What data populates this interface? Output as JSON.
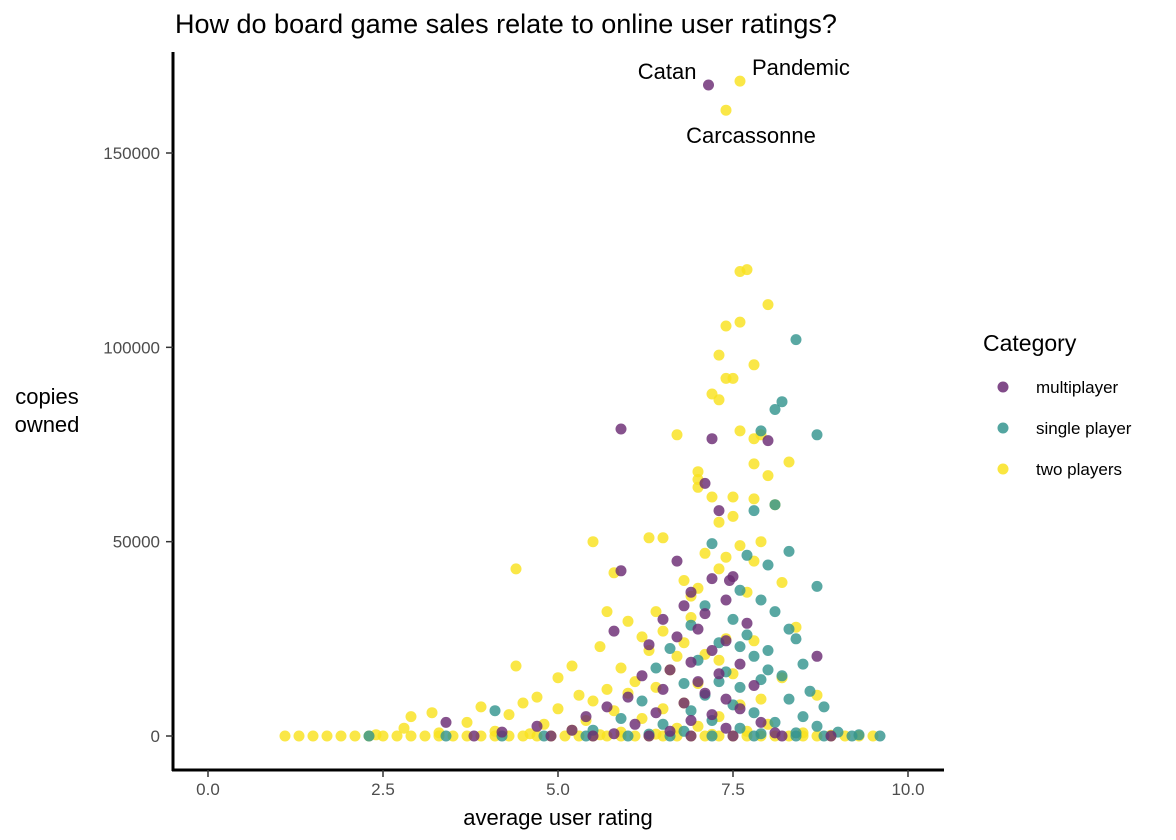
{
  "chart_data": {
    "type": "scatter",
    "title": "How do board game sales relate to online user ratings?",
    "xlabel": "average user rating",
    "ylabel_lines": [
      "copies",
      "owned"
    ],
    "xlim": [
      -0.5,
      10.5
    ],
    "ylim": [
      -8000,
      176000
    ],
    "x_ticks": [
      0,
      2.5,
      5,
      7.5,
      10
    ],
    "x_tick_labels": [
      "0.0",
      "2.5",
      "5.0",
      "7.5",
      "10.0"
    ],
    "y_ticks": [
      0,
      50000,
      100000,
      150000
    ],
    "y_tick_labels": [
      "0",
      "50000",
      "100000",
      "150000"
    ],
    "grid": false,
    "legend": {
      "title": "Category",
      "position": "right",
      "entries": [
        {
          "name": "multiplayer",
          "color": "#6b2c74"
        },
        {
          "name": "single player",
          "color": "#35958f"
        },
        {
          "name": "two players",
          "color": "#f9e21f"
        }
      ]
    },
    "annotations": [
      {
        "text": "Catan",
        "x": 7.15,
        "y": 167500
      },
      {
        "text": "Pandemic",
        "x": 7.6,
        "y": 168500
      },
      {
        "text": "Carcassonne",
        "x": 7.4,
        "y": 161000
      }
    ],
    "series": [
      {
        "name": "two players",
        "color": "#f9e21f",
        "points": [
          [
            7.6,
            168500
          ],
          [
            7.4,
            161000
          ],
          [
            7.6,
            119500
          ],
          [
            7.7,
            120000
          ],
          [
            8.0,
            111000
          ],
          [
            7.4,
            105500
          ],
          [
            7.6,
            106500
          ],
          [
            7.3,
            98000
          ],
          [
            7.8,
            95500
          ],
          [
            7.4,
            92000
          ],
          [
            7.5,
            92000
          ],
          [
            7.2,
            88000
          ],
          [
            7.3,
            86500
          ],
          [
            7.6,
            78500
          ],
          [
            6.7,
            77500
          ],
          [
            7.8,
            76500
          ],
          [
            7.9,
            77500
          ],
          [
            7.8,
            70000
          ],
          [
            8.3,
            70500
          ],
          [
            8.0,
            67000
          ],
          [
            7.0,
            68000
          ],
          [
            7.0,
            66000
          ],
          [
            7.0,
            64000
          ],
          [
            7.8,
            61000
          ],
          [
            8.1,
            59500
          ],
          [
            7.2,
            61500
          ],
          [
            7.5,
            61500
          ],
          [
            7.3,
            55000
          ],
          [
            7.5,
            56500
          ],
          [
            6.3,
            51000
          ],
          [
            6.5,
            51000
          ],
          [
            5.5,
            50000
          ],
          [
            7.1,
            47000
          ],
          [
            7.4,
            46000
          ],
          [
            7.8,
            45000
          ],
          [
            7.9,
            50000
          ],
          [
            7.6,
            49000
          ],
          [
            4.4,
            43000
          ],
          [
            5.8,
            42000
          ],
          [
            7.3,
            43000
          ],
          [
            6.8,
            40000
          ],
          [
            8.2,
            39500
          ],
          [
            6.9,
            36000
          ],
          [
            7.0,
            38000
          ],
          [
            7.7,
            37000
          ],
          [
            6.4,
            32000
          ],
          [
            5.7,
            32000
          ],
          [
            6.0,
            29500
          ],
          [
            6.9,
            30500
          ],
          [
            8.4,
            28000
          ],
          [
            6.5,
            27000
          ],
          [
            6.2,
            25500
          ],
          [
            7.4,
            25000
          ],
          [
            7.8,
            24500
          ],
          [
            6.8,
            24000
          ],
          [
            5.6,
            23000
          ],
          [
            6.3,
            22000
          ],
          [
            7.1,
            21000
          ],
          [
            6.7,
            20500
          ],
          [
            7.3,
            19500
          ],
          [
            4.4,
            18000
          ],
          [
            5.2,
            18000
          ],
          [
            5.9,
            17500
          ],
          [
            6.6,
            17000
          ],
          [
            7.5,
            16000
          ],
          [
            8.2,
            15000
          ],
          [
            5.0,
            15000
          ],
          [
            6.1,
            14000
          ],
          [
            7.0,
            13500
          ],
          [
            5.7,
            12000
          ],
          [
            6.4,
            12500
          ],
          [
            4.7,
            10000
          ],
          [
            5.3,
            10500
          ],
          [
            6.0,
            11000
          ],
          [
            8.7,
            10500
          ],
          [
            7.9,
            9500
          ],
          [
            4.5,
            8500
          ],
          [
            5.5,
            9000
          ],
          [
            6.8,
            8500
          ],
          [
            7.6,
            8000
          ],
          [
            3.9,
            7500
          ],
          [
            5.0,
            7000
          ],
          [
            5.8,
            6500
          ],
          [
            6.5,
            7000
          ],
          [
            3.2,
            6000
          ],
          [
            4.3,
            5500
          ],
          [
            2.9,
            5000
          ],
          [
            7.3,
            5000
          ],
          [
            6.2,
            4500
          ],
          [
            5.4,
            4000
          ],
          [
            3.7,
            3500
          ],
          [
            4.8,
            3000
          ],
          [
            8.0,
            3000
          ],
          [
            7.0,
            2500
          ],
          [
            2.8,
            2000
          ],
          [
            6.7,
            2000
          ],
          [
            5.2,
            1500
          ],
          [
            4.1,
            1200
          ],
          [
            7.7,
            1200
          ],
          [
            5.9,
            1000
          ],
          [
            3.3,
            800
          ],
          [
            8.5,
            800
          ],
          [
            4.6,
            600
          ],
          [
            6.4,
            500
          ],
          [
            7.2,
            400
          ],
          [
            2.4,
            300
          ],
          [
            5.6,
            300
          ],
          [
            8.9,
            200
          ],
          [
            1.1,
            0
          ],
          [
            1.3,
            0
          ],
          [
            1.5,
            0
          ],
          [
            1.7,
            0
          ],
          [
            1.9,
            0
          ],
          [
            2.1,
            0
          ],
          [
            2.3,
            0
          ],
          [
            2.5,
            0
          ],
          [
            2.7,
            0
          ],
          [
            2.9,
            0
          ],
          [
            3.1,
            0
          ],
          [
            3.3,
            0
          ],
          [
            3.5,
            0
          ],
          [
            3.7,
            0
          ],
          [
            3.9,
            0
          ],
          [
            4.1,
            0
          ],
          [
            4.3,
            0
          ],
          [
            4.5,
            0
          ],
          [
            4.7,
            0
          ],
          [
            4.9,
            0
          ],
          [
            5.1,
            0
          ],
          [
            5.3,
            0
          ],
          [
            5.5,
            0
          ],
          [
            5.7,
            0
          ],
          [
            5.9,
            0
          ],
          [
            6.1,
            0
          ],
          [
            6.3,
            0
          ],
          [
            6.5,
            0
          ],
          [
            6.7,
            0
          ],
          [
            6.9,
            0
          ],
          [
            7.1,
            0
          ],
          [
            7.3,
            0
          ],
          [
            7.5,
            0
          ],
          [
            7.7,
            0
          ],
          [
            7.9,
            0
          ],
          [
            8.1,
            0
          ],
          [
            8.3,
            0
          ],
          [
            8.5,
            0
          ],
          [
            8.7,
            0
          ],
          [
            8.9,
            0
          ],
          [
            9.1,
            0
          ],
          [
            9.3,
            0
          ],
          [
            9.5,
            0
          ]
        ]
      },
      {
        "name": "single player",
        "color": "#35958f",
        "points": [
          [
            8.4,
            102000
          ],
          [
            8.2,
            86000
          ],
          [
            8.1,
            84000
          ],
          [
            7.9,
            78500
          ],
          [
            8.7,
            77500
          ],
          [
            8.1,
            59500
          ],
          [
            7.8,
            58000
          ],
          [
            8.3,
            47500
          ],
          [
            7.7,
            46500
          ],
          [
            7.2,
            49500
          ],
          [
            8.0,
            44000
          ],
          [
            8.7,
            38500
          ],
          [
            7.6,
            37500
          ],
          [
            7.9,
            35000
          ],
          [
            7.1,
            33500
          ],
          [
            8.1,
            32000
          ],
          [
            7.5,
            30000
          ],
          [
            6.9,
            28500
          ],
          [
            8.3,
            27500
          ],
          [
            7.7,
            26000
          ],
          [
            8.4,
            25000
          ],
          [
            7.3,
            24000
          ],
          [
            6.6,
            22500
          ],
          [
            8.0,
            22000
          ],
          [
            7.8,
            20500
          ],
          [
            7.0,
            19500
          ],
          [
            8.5,
            18500
          ],
          [
            6.4,
            17500
          ],
          [
            7.4,
            16500
          ],
          [
            8.2,
            15500
          ],
          [
            7.9,
            14500
          ],
          [
            6.8,
            13500
          ],
          [
            7.6,
            12500
          ],
          [
            8.6,
            11500
          ],
          [
            7.1,
            10500
          ],
          [
            8.3,
            9500
          ],
          [
            6.2,
            9000
          ],
          [
            7.5,
            8000
          ],
          [
            8.8,
            7500
          ],
          [
            6.9,
            6500
          ],
          [
            7.8,
            6000
          ],
          [
            8.5,
            5000
          ],
          [
            5.9,
            4500
          ],
          [
            7.2,
            4000
          ],
          [
            8.1,
            3500
          ],
          [
            6.5,
            3000
          ],
          [
            8.7,
            2500
          ],
          [
            7.6,
            2000
          ],
          [
            5.5,
            1500
          ],
          [
            6.8,
            1200
          ],
          [
            9.0,
            1000
          ],
          [
            8.4,
            800
          ],
          [
            4.1,
            6500
          ],
          [
            7.9,
            600
          ],
          [
            6.3,
            500
          ],
          [
            9.3,
            300
          ],
          [
            2.3,
            0
          ],
          [
            3.4,
            0
          ],
          [
            4.2,
            0
          ],
          [
            4.8,
            0
          ],
          [
            5.4,
            0
          ],
          [
            6.0,
            0
          ],
          [
            6.6,
            0
          ],
          [
            7.2,
            0
          ],
          [
            7.8,
            0
          ],
          [
            8.4,
            0
          ],
          [
            8.8,
            0
          ],
          [
            9.2,
            0
          ],
          [
            9.6,
            0
          ],
          [
            7.6,
            23000
          ],
          [
            8.0,
            17000
          ],
          [
            7.3,
            14000
          ]
        ]
      },
      {
        "name": "multiplayer",
        "color": "#6b2c74",
        "points": [
          [
            7.15,
            167500
          ],
          [
            5.9,
            79000
          ],
          [
            7.2,
            76500
          ],
          [
            8.0,
            76000
          ],
          [
            7.1,
            65000
          ],
          [
            7.3,
            58000
          ],
          [
            6.7,
            45000
          ],
          [
            5.9,
            42500
          ],
          [
            7.2,
            40500
          ],
          [
            7.5,
            41000
          ],
          [
            6.9,
            37000
          ],
          [
            7.4,
            35000
          ],
          [
            6.8,
            33500
          ],
          [
            7.1,
            31500
          ],
          [
            6.5,
            30000
          ],
          [
            7.7,
            29000
          ],
          [
            7.0,
            27500
          ],
          [
            5.8,
            27000
          ],
          [
            6.7,
            25500
          ],
          [
            7.4,
            24500
          ],
          [
            6.3,
            23500
          ],
          [
            7.2,
            22000
          ],
          [
            8.7,
            20500
          ],
          [
            6.9,
            19000
          ],
          [
            7.6,
            18500
          ],
          [
            6.6,
            17000
          ],
          [
            7.3,
            16000
          ],
          [
            6.2,
            15500
          ],
          [
            7.0,
            14000
          ],
          [
            7.8,
            13000
          ],
          [
            6.5,
            12000
          ],
          [
            7.1,
            11000
          ],
          [
            6.0,
            10000
          ],
          [
            7.4,
            9500
          ],
          [
            6.8,
            8500
          ],
          [
            5.7,
            7500
          ],
          [
            7.6,
            7000
          ],
          [
            6.4,
            6000
          ],
          [
            7.2,
            5500
          ],
          [
            5.4,
            5000
          ],
          [
            6.9,
            4000
          ],
          [
            3.4,
            3500
          ],
          [
            7.9,
            3500
          ],
          [
            6.1,
            3000
          ],
          [
            4.7,
            2500
          ],
          [
            7.4,
            2000
          ],
          [
            5.2,
            1500
          ],
          [
            6.6,
            1200
          ],
          [
            4.2,
            1000
          ],
          [
            8.1,
            800
          ],
          [
            5.8,
            600
          ],
          [
            3.8,
            0
          ],
          [
            4.9,
            0
          ],
          [
            5.5,
            0
          ],
          [
            6.3,
            0
          ],
          [
            6.9,
            0
          ],
          [
            7.5,
            0
          ],
          [
            8.2,
            0
          ],
          [
            8.9,
            0
          ],
          [
            7.45,
            40000
          ]
        ]
      }
    ]
  }
}
